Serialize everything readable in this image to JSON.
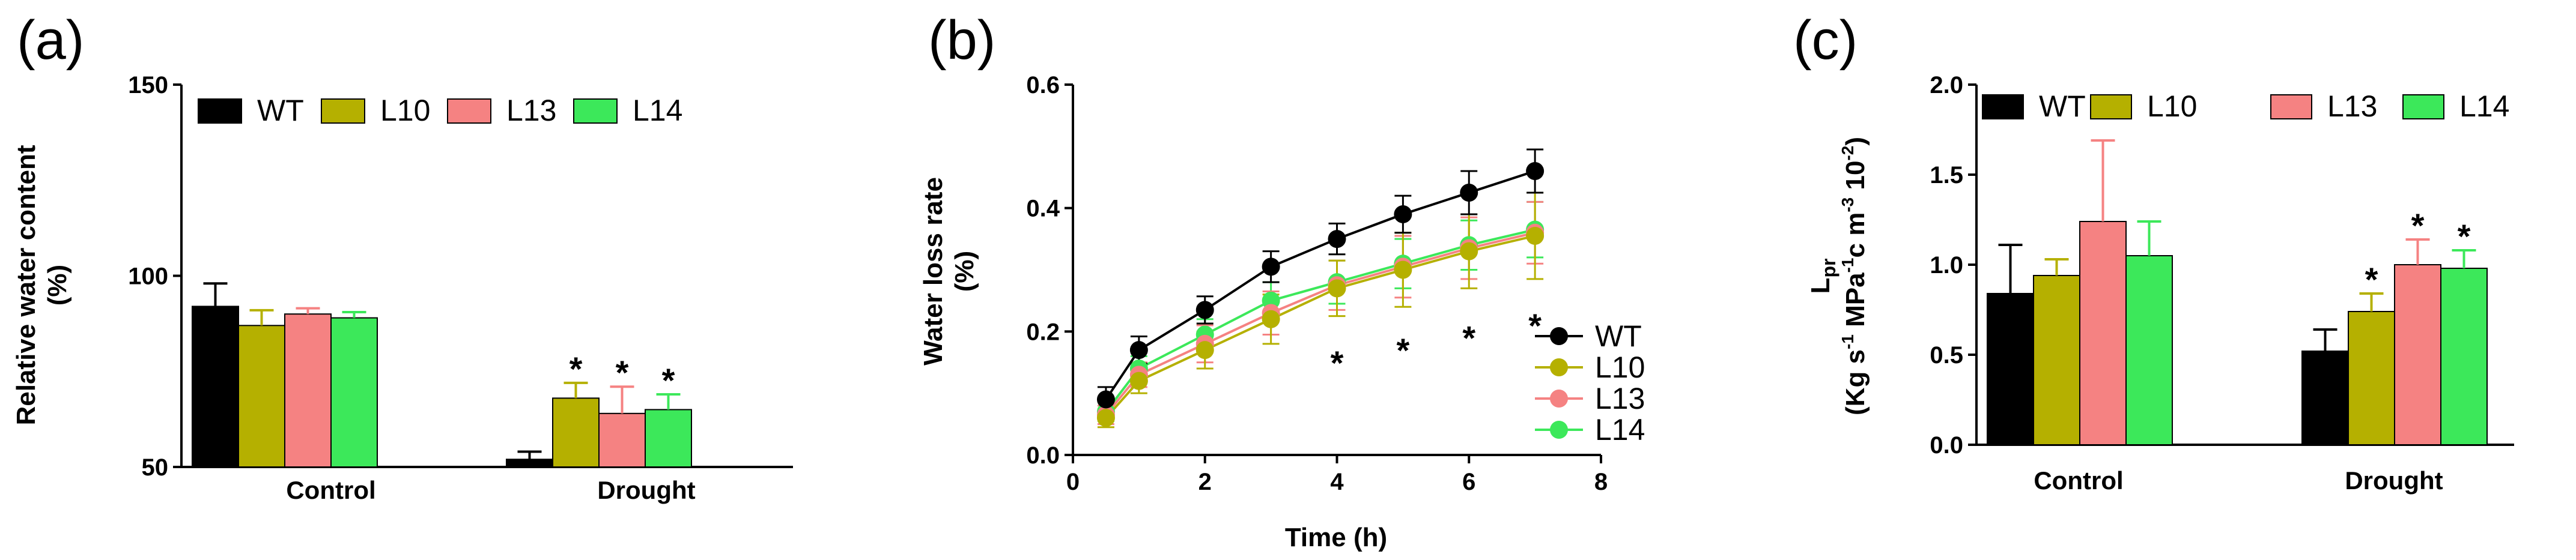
{
  "chart_data": [
    {
      "panel": "(a)",
      "type": "bar",
      "categories": [
        "Control",
        "Drought"
      ],
      "series": [
        {
          "name": "WT",
          "color": "#000000",
          "values": [
            92,
            52
          ],
          "errors": [
            6,
            2
          ],
          "significant": [
            false,
            false
          ]
        },
        {
          "name": "L10",
          "color": "#b5b000",
          "values": [
            87,
            68
          ],
          "errors": [
            4,
            4
          ],
          "significant": [
            false,
            true
          ]
        },
        {
          "name": "L13",
          "color": "#f58282",
          "values": [
            90,
            64
          ],
          "errors": [
            1.5,
            7
          ],
          "significant": [
            false,
            true
          ]
        },
        {
          "name": "L14",
          "color": "#3ce85a",
          "values": [
            89,
            65
          ],
          "errors": [
            1.5,
            4
          ],
          "significant": [
            false,
            true
          ]
        }
      ],
      "ylim": [
        50,
        150
      ],
      "yticks": [
        "50",
        "100",
        "150"
      ],
      "ylabel_lines": [
        "Relative water content",
        "(%)"
      ],
      "xlabel": "",
      "star": "*",
      "legend_position": "top"
    },
    {
      "panel": "(b)",
      "type": "line",
      "x": [
        0.5,
        1,
        2,
        3,
        4,
        5,
        6,
        7
      ],
      "series": [
        {
          "name": "WT",
          "color": "#000000",
          "values": [
            0.09,
            0.17,
            0.235,
            0.305,
            0.35,
            0.39,
            0.425,
            0.46
          ],
          "errors": [
            0.02,
            0.022,
            0.022,
            0.025,
            0.025,
            0.03,
            0.035,
            0.035
          ]
        },
        {
          "name": "L10",
          "color": "#b5b000",
          "values": [
            0.06,
            0.12,
            0.17,
            0.22,
            0.27,
            0.3,
            0.33,
            0.355
          ],
          "errors": [
            0.015,
            0.02,
            0.03,
            0.04,
            0.045,
            0.06,
            0.06,
            0.07
          ]
        },
        {
          "name": "L13",
          "color": "#f58282",
          "values": [
            0.065,
            0.13,
            0.18,
            0.23,
            0.275,
            0.305,
            0.335,
            0.36
          ],
          "errors": [
            0.015,
            0.02,
            0.03,
            0.035,
            0.04,
            0.05,
            0.05,
            0.05
          ]
        },
        {
          "name": "L14",
          "color": "#3ce85a",
          "values": [
            0.07,
            0.14,
            0.195,
            0.25,
            0.28,
            0.31,
            0.34,
            0.365
          ],
          "errors": [
            0.015,
            0.02,
            0.025,
            0.03,
            0.035,
            0.04,
            0.04,
            0.045
          ]
        }
      ],
      "significant_x": [
        4,
        5,
        6,
        7
      ],
      "star_y": [
        0.15,
        0.17,
        0.19,
        0.21
      ],
      "xlim": [
        0,
        8
      ],
      "ylim": [
        0,
        0.6
      ],
      "xticks": [
        "0",
        "2",
        "4",
        "6",
        "8"
      ],
      "yticks": [
        "0.0",
        "0.2",
        "0.4",
        "0.6"
      ],
      "xlabel": "Time (h)",
      "ylabel_lines": [
        "Water loss rate",
        "(%)"
      ],
      "star": "*",
      "legend_position": "bottom-right"
    },
    {
      "panel": "(c)",
      "type": "bar",
      "categories": [
        "Control",
        "Drought"
      ],
      "series": [
        {
          "name": "WT",
          "color": "#000000",
          "values": [
            0.84,
            0.52
          ],
          "errors": [
            0.27,
            0.12
          ],
          "significant": [
            false,
            false
          ]
        },
        {
          "name": "L10",
          "color": "#b5b000",
          "values": [
            0.94,
            0.74
          ],
          "errors": [
            0.09,
            0.1
          ],
          "significant": [
            false,
            true
          ]
        },
        {
          "name": "L13",
          "color": "#f58282",
          "values": [
            1.24,
            1.0
          ],
          "errors": [
            0.45,
            0.14
          ],
          "significant": [
            false,
            true
          ]
        },
        {
          "name": "L14",
          "color": "#3ce85a",
          "values": [
            1.05,
            0.98
          ],
          "errors": [
            0.19,
            0.1
          ],
          "significant": [
            false,
            true
          ]
        }
      ],
      "ylim": [
        0,
        2.0
      ],
      "yticks": [
        "0.0",
        "0.5",
        "1.0",
        "1.5",
        "2.0"
      ],
      "ylabel_lines": [
        "Lpr",
        "(Kg s-1 MPa-1c m-3 10-2)"
      ],
      "xlabel": "",
      "star": "*",
      "legend_position": "top"
    }
  ]
}
